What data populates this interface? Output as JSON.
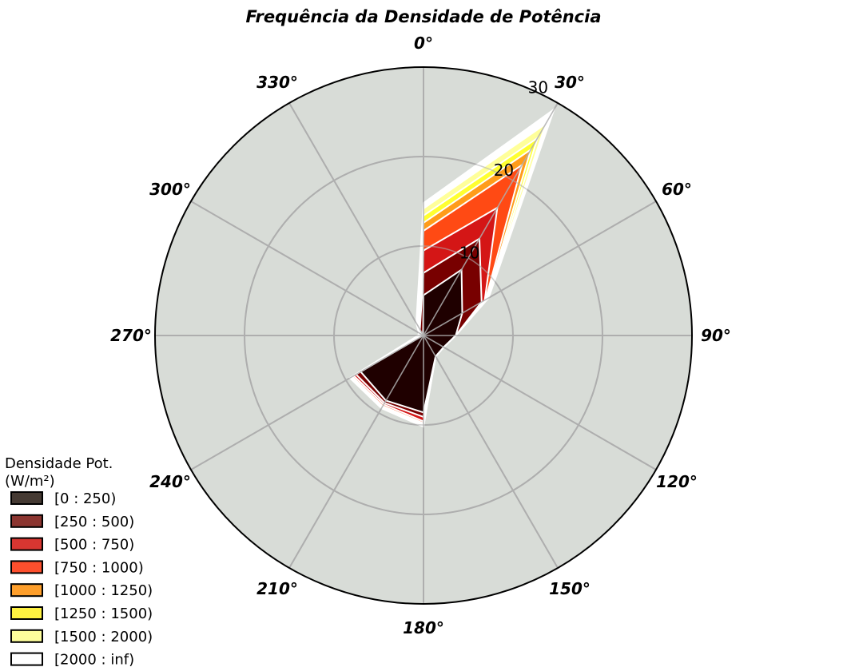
{
  "chart_data": {
    "type": "radar",
    "title": "Frequência da Densidade de Potência",
    "direction_labels": [
      "0°",
      "30°",
      "60°",
      "90°",
      "120°",
      "150°",
      "180°",
      "210°",
      "240°",
      "270°",
      "300°",
      "330°"
    ],
    "radial_ticks": [
      10,
      20,
      30
    ],
    "rlim": [
      0,
      30
    ],
    "grid": true,
    "legend": {
      "title": "Densidade Pot. (W/m²)",
      "placement": "bottom-left"
    },
    "bins": [
      {
        "name": "[0 : 250)",
        "fill": "#1f0000",
        "legend_color": "#453a33",
        "values": [
          4.5,
          8.5,
          5.0,
          3.6,
          2.6,
          2.7,
          8.6,
          8.4,
          8.1,
          0.1,
          0.1,
          0.1
        ]
      },
      {
        "name": "[250 : 500)",
        "fill": "#780000",
        "legend_color": "#8b3530",
        "values": [
          7.0,
          12.5,
          7.5,
          3.6,
          2.6,
          2.7,
          9.1,
          8.7,
          8.7,
          0.2,
          0.2,
          0.8
        ]
      },
      {
        "name": "[500 : 750)",
        "fill": "#d41616",
        "legend_color": "#d83631",
        "values": [
          9.5,
          16.5,
          7.9,
          3.6,
          2.6,
          2.7,
          9.6,
          8.9,
          9.0,
          0.3,
          0.3,
          1.0
        ]
      },
      {
        "name": "[750 : 1000)",
        "fill": "#ff4a14",
        "legend_color": "#fd4f2d",
        "values": [
          11.7,
          22.0,
          8.0,
          3.6,
          2.6,
          2.7,
          9.8,
          9.1,
          9.2,
          0.4,
          0.4,
          1.2
        ]
      },
      {
        "name": "[1000 : 1250)",
        "fill": "#ff9c1a",
        "legend_color": "#fe9f2c",
        "values": [
          12.6,
          24.0,
          8.1,
          3.6,
          2.6,
          2.7,
          9.9,
          9.2,
          9.3,
          0.45,
          0.45,
          1.3
        ]
      },
      {
        "name": "[1250 : 1500)",
        "fill": "#ffff30",
        "legend_color": "#fef141",
        "values": [
          13.4,
          25.5,
          8.2,
          3.6,
          2.6,
          2.7,
          10.0,
          9.3,
          9.4,
          0.5,
          0.5,
          1.4
        ]
      },
      {
        "name": "[1500 : 2000)",
        "fill": "#ffff9a",
        "legend_color": "#fefe9c",
        "values": [
          14.2,
          27.3,
          8.3,
          3.6,
          2.6,
          2.7,
          10.1,
          9.35,
          9.45,
          0.55,
          0.55,
          1.5
        ]
      },
      {
        "name": "[2000 : inf)",
        "fill": "#ffffff",
        "legend_color": "#ffffff",
        "values": [
          14.8,
          29.2,
          8.4,
          3.6,
          2.6,
          2.7,
          10.2,
          9.4,
          9.5,
          0.6,
          0.6,
          1.6
        ]
      }
    ],
    "colors": {
      "background": "#d8dcd7",
      "grid": "#aeaeae",
      "outline": "#000000",
      "series_edge": "#ffffff"
    }
  }
}
